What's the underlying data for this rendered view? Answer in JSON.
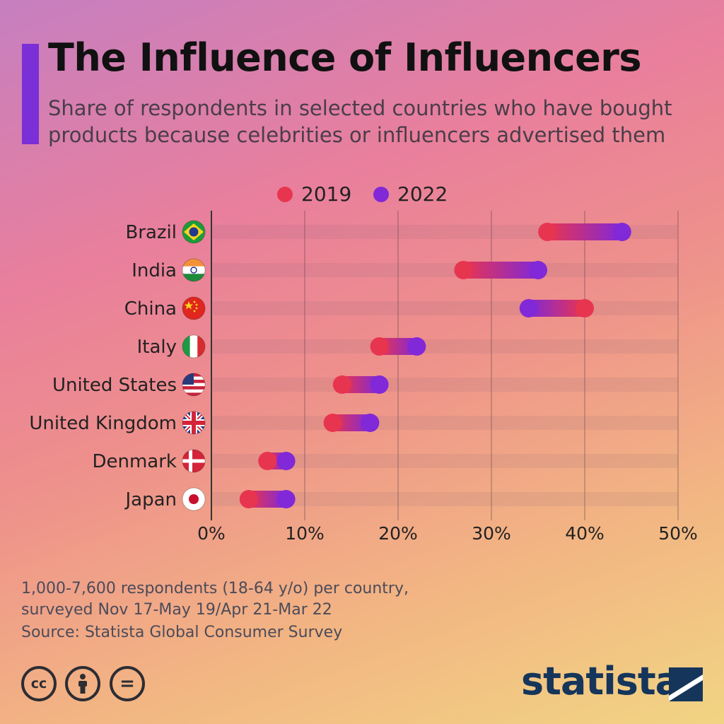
{
  "header": {
    "title": "The Influence of Influencers",
    "subtitle": "Share of respondents in selected countries who have bought products because celebrities or influencers advertised them"
  },
  "legend": [
    {
      "label": "2019",
      "color": "#e8354f"
    },
    {
      "label": "2022",
      "color": "#8128d8"
    }
  ],
  "chart_data": {
    "type": "dumbbell",
    "categories": [
      "Brazil",
      "India",
      "China",
      "Italy",
      "United States",
      "United Kingdom",
      "Denmark",
      "Japan"
    ],
    "flags": [
      "brazil-flag-icon",
      "india-flag-icon",
      "china-flag-icon",
      "italy-flag-icon",
      "usa-flag-icon",
      "uk-flag-icon",
      "denmark-flag-icon",
      "japan-flag-icon"
    ],
    "series": [
      {
        "name": "2019",
        "color": "#e8354f",
        "values": [
          36,
          27,
          40,
          18,
          14,
          13,
          6,
          4
        ]
      },
      {
        "name": "2022",
        "color": "#8128d8",
        "values": [
          44,
          35,
          34,
          22,
          18,
          17,
          8,
          8
        ]
      }
    ],
    "xlim": [
      0,
      50
    ],
    "xticks": [
      0,
      10,
      20,
      30,
      40,
      50
    ],
    "xtick_labels": [
      "0%",
      "10%",
      "20%",
      "30%",
      "40%",
      "50%"
    ],
    "grid": true,
    "legend_position": "top"
  },
  "footer": {
    "note": "1,000-7,600 respondents (18-64 y/o) per country,\nsurveyed Nov 17-May 19/Apr 21-Mar 22",
    "source": "Source: Statista Global Consumer Survey",
    "license_icons": [
      "cc-icon",
      "attribution-icon",
      "no-derivatives-icon"
    ],
    "license_labels": [
      "cc",
      "",
      "="
    ],
    "brand": "statista"
  }
}
